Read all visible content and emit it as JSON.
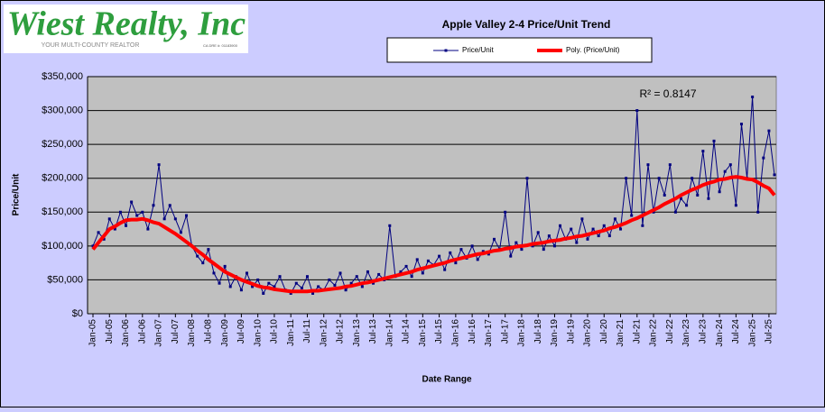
{
  "logo": {
    "name": "Wiest Realty, Inc",
    "tagline": "YOUR MULTI-COUNTY REALTOR",
    "license": "CA DRE #: 01183900"
  },
  "chart_data": {
    "type": "line",
    "title": "Apple Valley 2-4 Price/Unit Trend",
    "y_label": "Price/Unit",
    "x_label": "Date Range",
    "annotation": "R² = 0.8147",
    "categories": [
      "Jan-05",
      null,
      null,
      "Jul-05",
      null,
      null,
      "Jan-06",
      null,
      null,
      "Jul-06",
      null,
      null,
      "Jan-07",
      null,
      null,
      "Jul-07",
      null,
      null,
      "Jan-08",
      null,
      null,
      "Jul-08",
      null,
      null,
      "Jan-09",
      null,
      null,
      "Jul-09",
      null,
      null,
      "Jan-10",
      null,
      null,
      "Jul-10",
      null,
      null,
      "Jan-11",
      null,
      null,
      "Jul-11",
      null,
      null,
      "Jan-12",
      null,
      null,
      "Jul-12",
      null,
      null,
      "Jan-13",
      null,
      null,
      "Jul-13",
      null,
      null,
      "Jan-14",
      null,
      null,
      "Jul-14",
      null,
      null,
      "Jan-15",
      null,
      null,
      "Jul-15",
      null,
      null,
      "Jan-16",
      null,
      null,
      "Jul-16",
      null,
      null,
      "Jan-17",
      null,
      null,
      "Jul-17",
      null,
      null,
      "Jan-18",
      null,
      null,
      "Jul-18",
      null,
      null,
      "Jan-19",
      null,
      null,
      "Jul-19",
      null,
      null,
      "Jan-20",
      null,
      null,
      "Jul-20",
      null,
      null,
      "Jan-21",
      null,
      null,
      "Jul-21",
      null,
      null,
      "Jan-22",
      null,
      null,
      "Jul-22",
      null,
      null,
      "Jan-23",
      null,
      null,
      "Jul-23",
      null,
      null,
      "Jan-24",
      null,
      null,
      "Jul-24",
      null,
      null,
      "Jan-25",
      null,
      null,
      "Jul-25",
      null
    ],
    "series": [
      {
        "name": "Price/Unit",
        "color": "#000080",
        "markers": true,
        "width": 1,
        "values": [
          100000,
          120000,
          110000,
          140000,
          125000,
          150000,
          130000,
          165000,
          145000,
          150000,
          125000,
          160000,
          220000,
          140000,
          160000,
          140000,
          120000,
          145000,
          100000,
          85000,
          75000,
          95000,
          60000,
          45000,
          70000,
          40000,
          55000,
          35000,
          60000,
          40000,
          50000,
          30000,
          45000,
          40000,
          55000,
          35000,
          30000,
          45000,
          38000,
          55000,
          30000,
          40000,
          35000,
          50000,
          42000,
          60000,
          35000,
          45000,
          55000,
          40000,
          62000,
          45000,
          58000,
          50000,
          130000,
          55000,
          62000,
          70000,
          55000,
          80000,
          60000,
          78000,
          72000,
          85000,
          65000,
          90000,
          75000,
          95000,
          82000,
          100000,
          80000,
          92000,
          88000,
          110000,
          95000,
          150000,
          85000,
          105000,
          95000,
          200000,
          100000,
          120000,
          95000,
          115000,
          100000,
          130000,
          110000,
          125000,
          105000,
          140000,
          110000,
          125000,
          115000,
          130000,
          115000,
          140000,
          125000,
          200000,
          145000,
          300000,
          130000,
          220000,
          150000,
          200000,
          175000,
          220000,
          150000,
          170000,
          160000,
          200000,
          175000,
          240000,
          170000,
          255000,
          180000,
          210000,
          220000,
          160000,
          280000,
          200000,
          320000,
          150000,
          230000,
          270000,
          205000
        ]
      },
      {
        "name": "Poly. (Price/Unit)",
        "color": "#ff0000",
        "markers": false,
        "width": 4,
        "values": [
          95000,
          105000,
          115000,
          125000,
          129000,
          134000,
          138000,
          139000,
          139000,
          140000,
          138000,
          135000,
          133000,
          128000,
          123000,
          118000,
          112000,
          106000,
          100000,
          93000,
          87000,
          80000,
          74000,
          68000,
          62000,
          58000,
          54000,
          50000,
          47000,
          44000,
          41000,
          39000,
          38000,
          36000,
          35000,
          34000,
          33000,
          33000,
          33000,
          33000,
          34000,
          34000,
          35000,
          36000,
          37000,
          38000,
          40000,
          41000,
          43000,
          45000,
          46000,
          48000,
          50000,
          52000,
          54000,
          56000,
          58000,
          60000,
          62000,
          65000,
          67000,
          69000,
          71000,
          73000,
          75000,
          78000,
          80000,
          82000,
          84000,
          86000,
          88000,
          89000,
          91000,
          93000,
          94000,
          96000,
          97000,
          99000,
          100000,
          101000,
          103000,
          104000,
          105000,
          107000,
          108000,
          109000,
          111000,
          112000,
          114000,
          115000,
          117000,
          119000,
          121000,
          123000,
          126000,
          128000,
          131000,
          134000,
          138000,
          141000,
          145000,
          149000,
          153000,
          157000,
          162000,
          166000,
          170000,
          175000,
          179000,
          183000,
          186000,
          190000,
          193000,
          195000,
          198000,
          199000,
          201000,
          202000,
          201000,
          199000,
          198000,
          194000,
          189000,
          185000,
          175000
        ]
      }
    ],
    "ylim": [
      0,
      350000
    ],
    "yticks": [
      {
        "value": 0,
        "label": "$0"
      },
      {
        "value": 50000,
        "label": "$50,000"
      },
      {
        "value": 100000,
        "label": "$100,000"
      },
      {
        "value": 150000,
        "label": "$150,000"
      },
      {
        "value": 200000,
        "label": "$200,000"
      },
      {
        "value": 250000,
        "label": "$250,000"
      },
      {
        "value": 300000,
        "label": "$300,000"
      },
      {
        "value": 350000,
        "label": "$350,000"
      }
    ],
    "grid": true
  }
}
